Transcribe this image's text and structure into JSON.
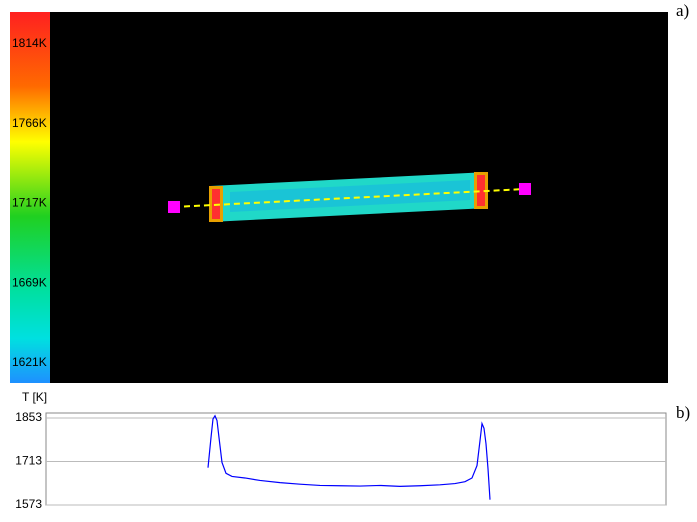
{
  "colorbar": {
    "labels": [
      "1814K",
      "1766K",
      "1717K",
      "1669K",
      "1621K"
    ]
  },
  "panel_labels": [
    "a)",
    "b)"
  ],
  "chart_data": {
    "type": "line",
    "y_label": "T [K]",
    "x": [
      162,
      165,
      167,
      169,
      171,
      173,
      176,
      180,
      186,
      199,
      214,
      234,
      254,
      274,
      294,
      314,
      334,
      354,
      374,
      394,
      409,
      419,
      426,
      431,
      434,
      436,
      438,
      440,
      442,
      444
    ],
    "series": [
      {
        "color": "#0000ff",
        "values": [
          1693,
          1790,
          1850,
          1860,
          1845,
          1790,
          1710,
          1675,
          1665,
          1660,
          1652,
          1645,
          1640,
          1636,
          1635,
          1634,
          1636,
          1633,
          1635,
          1638,
          1642,
          1648,
          1660,
          1700,
          1780,
          1835,
          1820,
          1770,
          1690,
          1590
        ]
      }
    ],
    "xlim": [
      0,
      620
    ],
    "ylim": [
      1573,
      1853
    ],
    "yticks": [
      1853,
      1713,
      1573
    ],
    "grid": true
  }
}
